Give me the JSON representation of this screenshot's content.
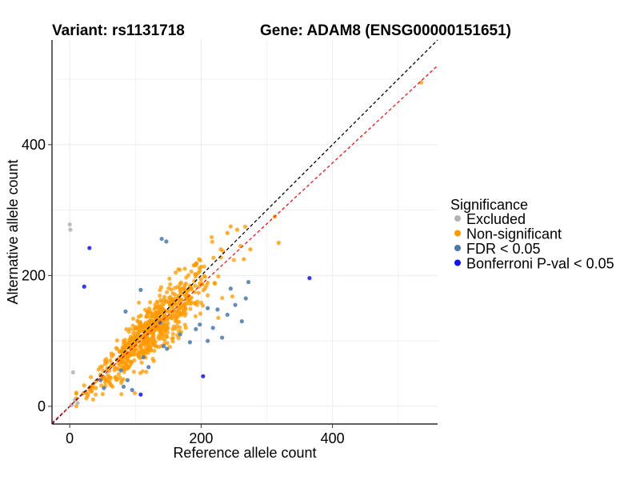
{
  "chart_data": {
    "type": "scatter",
    "title_left": "Variant: rs1131718",
    "title_right": "Gene: ADAM8 (ENSG00000151651)",
    "xlabel": "Reference allele count",
    "ylabel": "Alternative allele count",
    "xlim": [
      -27,
      560
    ],
    "ylim": [
      -27,
      560
    ],
    "xticks": [
      0,
      200,
      400
    ],
    "yticks": [
      0,
      200,
      400
    ],
    "grid": true,
    "reference_lines": [
      {
        "name": "identity",
        "slope": 1.0,
        "color": "#000000",
        "dashed": true
      },
      {
        "name": "fit",
        "slope": 0.93,
        "color": "#e31a1c",
        "dashed": true
      }
    ],
    "legend": {
      "title": "Significance",
      "position": "right",
      "entries": [
        {
          "label": "Excluded",
          "color": "#b3b3b3"
        },
        {
          "label": "Non-significant",
          "color": "#ff9900"
        },
        {
          "label": "FDR < 0.05",
          "color": "#4a78a8"
        },
        {
          "label": "Bonferroni P-val < 0.05",
          "color": "#1414e6"
        }
      ]
    },
    "series": [
      {
        "name": "Excluded",
        "color": "#b3b3b3",
        "points": [
          [
            0,
            278
          ],
          [
            1,
            270
          ],
          [
            5,
            52
          ],
          [
            12,
            5
          ],
          [
            3,
            2
          ],
          [
            8,
            10
          ]
        ]
      },
      {
        "name": "FDR < 0.05",
        "color": "#4a78a8",
        "points": [
          [
            140,
            256
          ],
          [
            147,
            252
          ],
          [
            245,
            180
          ],
          [
            272,
            190
          ],
          [
            268,
            165
          ],
          [
            252,
            155
          ],
          [
            210,
            150
          ],
          [
            225,
            148
          ],
          [
            240,
            140
          ],
          [
            262,
            130
          ],
          [
            218,
            120
          ],
          [
            232,
            105
          ],
          [
            210,
            100
          ],
          [
            143,
            92
          ],
          [
            148,
            88
          ],
          [
            112,
            75
          ],
          [
            78,
            55
          ],
          [
            88,
            40
          ],
          [
            82,
            30
          ],
          [
            47,
            40
          ],
          [
            52,
            28
          ],
          [
            85,
            145
          ],
          [
            168,
            110
          ],
          [
            183,
            98
          ],
          [
            198,
            125
          ],
          [
            192,
            118
          ],
          [
            120,
            60
          ],
          [
            95,
            25
          ],
          [
            108,
            178
          ],
          [
            138,
            128
          ]
        ]
      },
      {
        "name": "Bonferroni P-val < 0.05",
        "color": "#1414e6",
        "points": [
          [
            30,
            242
          ],
          [
            22,
            183
          ],
          [
            365,
            196
          ],
          [
            203,
            46
          ],
          [
            108,
            18
          ]
        ]
      }
    ],
    "nonsig_outliers": [
      [
        535,
        495
      ],
      [
        312,
        290
      ],
      [
        318,
        250
      ],
      [
        245,
        275
      ],
      [
        255,
        270
      ],
      [
        275,
        240
      ],
      [
        265,
        225
      ],
      [
        240,
        265
      ],
      [
        230,
        240
      ],
      [
        260,
        245
      ]
    ],
    "nonsig_cloud": {
      "count": 700,
      "x_range": [
        10,
        280
      ],
      "center_x": 125,
      "spread_x": 45,
      "slope": 0.93,
      "y_noise": 18,
      "color": "#ff9900"
    }
  }
}
